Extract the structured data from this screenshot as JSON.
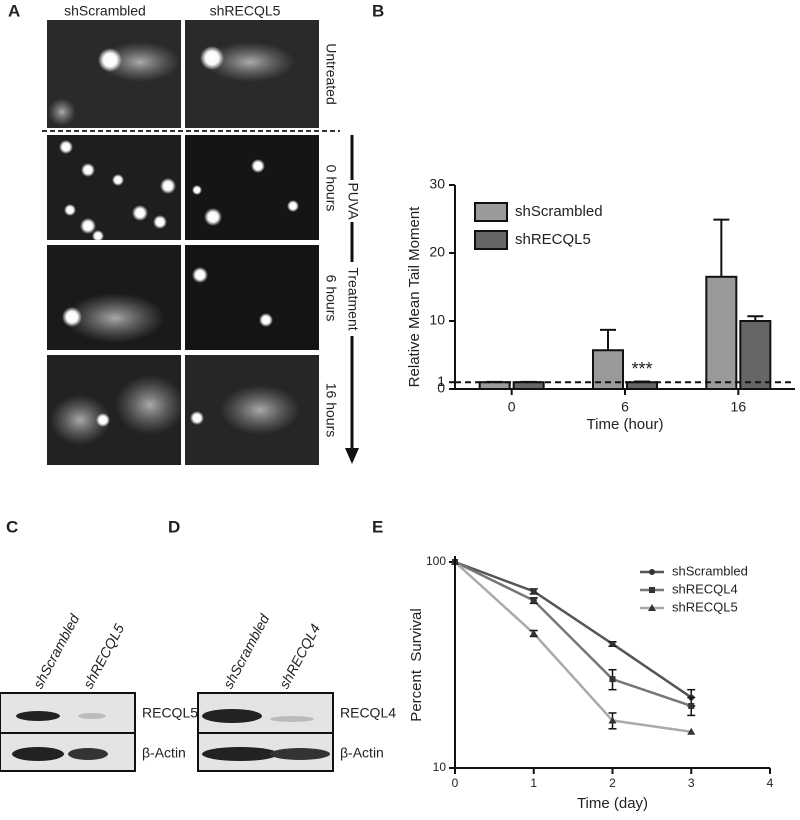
{
  "panel_labels": [
    "A",
    "B",
    "C",
    "D",
    "E"
  ],
  "comet": {
    "columns": [
      "shScrambled",
      "shRECQL5"
    ],
    "rows": [
      "Untreated",
      "0 hours",
      "6 hours",
      "16 hours"
    ],
    "treatment": [
      "PUVA",
      "Treatment"
    ]
  },
  "blots": [
    {
      "lanes": [
        "shScrambled",
        "shRECQL5"
      ],
      "bands": [
        "RECQL5",
        "β-Actin"
      ]
    },
    {
      "lanes": [
        "shScrambled",
        "shRECQL4"
      ],
      "bands": [
        "RECQL4",
        "β-Actin"
      ]
    }
  ],
  "chart_data": [
    {
      "type": "bar",
      "ylabel": "Relative Mean Tail Moment",
      "xlabel": "Time (hour)",
      "categories": [
        "0",
        "6",
        "16"
      ],
      "series": [
        {
          "name": "shScrambled",
          "color": "#9a9a9a",
          "values": [
            1.0,
            5.7,
            16.5
          ],
          "errors": [
            0.05,
            3.0,
            8.4
          ]
        },
        {
          "name": "shRECQL5",
          "color": "#666666",
          "values": [
            1.0,
            1.0,
            10.0
          ],
          "errors": [
            0.05,
            0.1,
            0.7
          ]
        }
      ],
      "ylim": [
        0,
        30
      ],
      "yticks": [
        0,
        1,
        10,
        20,
        30
      ],
      "reference_line": 1,
      "annotation": "***",
      "legend": "upper left"
    },
    {
      "type": "line",
      "ylabel": "Percent  Survival",
      "xlabel": "Time (day)",
      "x": [
        0,
        1,
        2,
        3
      ],
      "series": [
        {
          "name": "shScrambled",
          "color": "#555555",
          "marker": "circle",
          "values": [
            100,
            72,
            40,
            22
          ],
          "errors": [
            0,
            2,
            1,
            2
          ]
        },
        {
          "name": "shRECQL4",
          "color": "#777777",
          "marker": "square",
          "values": [
            100,
            65,
            27,
            20
          ],
          "errors": [
            0,
            2,
            3,
            2
          ]
        },
        {
          "name": "shRECQL5",
          "color": "#aaaaaa",
          "marker": "triangle",
          "values": [
            100,
            45,
            17,
            15
          ],
          "errors": [
            0,
            1.5,
            1.5,
            0
          ]
        }
      ],
      "xlim": [
        0,
        4
      ],
      "xticks": [
        0,
        1,
        2,
        3,
        4
      ],
      "ylim": [
        10,
        100
      ],
      "yticks": [
        10,
        100
      ],
      "log_y": true,
      "legend": "upper right"
    }
  ]
}
